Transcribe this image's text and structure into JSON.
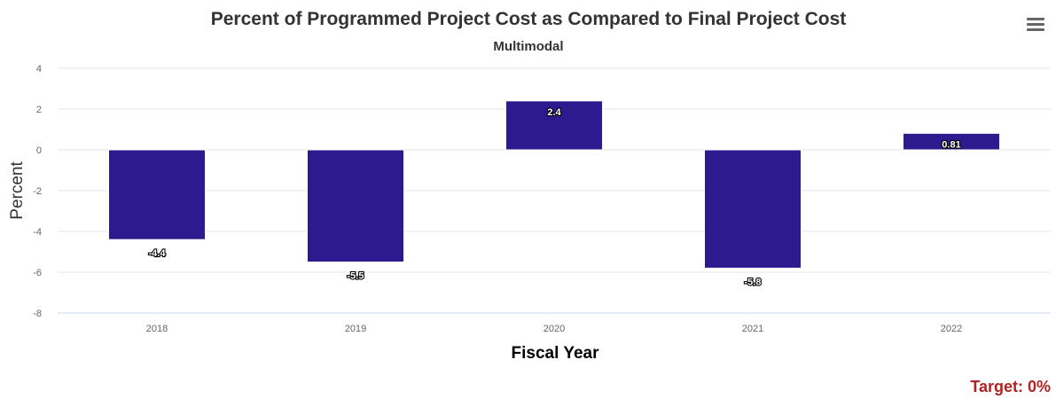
{
  "chart_data": {
    "type": "bar",
    "title": "Percent of Programmed Project Cost as Compared to Final Project Cost",
    "subtitle": "Multimodal",
    "xlabel": "Fiscal Year",
    "ylabel": "Percent",
    "categories": [
      "2018",
      "2019",
      "2020",
      "2021",
      "2022"
    ],
    "values": [
      -4.4,
      -5.5,
      2.4,
      -5.8,
      0.81
    ],
    "data_labels": [
      "-4.4",
      "-5.5",
      "2.4",
      "-5.8",
      "0.81"
    ],
    "ylim": [
      -8,
      4
    ],
    "yticks": [
      4,
      2,
      0,
      -2,
      -4,
      -6,
      -8
    ],
    "grid": true,
    "bar_color": "#2e1a8f"
  },
  "menu": {
    "icon": "hamburger-menu-icon"
  },
  "target_text": "Target: 0%"
}
